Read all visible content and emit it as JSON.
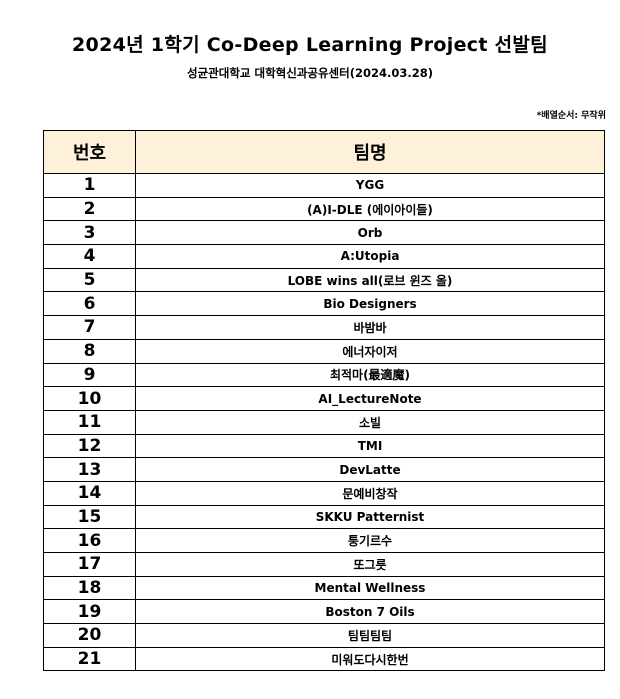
{
  "title": "2024년 1학기 Co-Deep Learning Project 선발팀",
  "subtitle": "성균관대학교 대학혁신과공유센터(2024.03.28)",
  "note": "*배열순서: 무작위",
  "table": {
    "headers": [
      "번호",
      "팀명"
    ],
    "rows": [
      {
        "num": "1",
        "name": "YGG"
      },
      {
        "num": "2",
        "name": "(A)I-DLE (에이아이들)"
      },
      {
        "num": "3",
        "name": "Orb"
      },
      {
        "num": "4",
        "name": "A:Utopia"
      },
      {
        "num": "5",
        "name": "LOBE wins all(로브 윈즈 올)"
      },
      {
        "num": "6",
        "name": "Bio Designers"
      },
      {
        "num": "7",
        "name": "바밤바"
      },
      {
        "num": "8",
        "name": "에너자이저"
      },
      {
        "num": "9",
        "name": "최적마(最適魔)"
      },
      {
        "num": "10",
        "name": "AI_LectureNote"
      },
      {
        "num": "11",
        "name": "소빌"
      },
      {
        "num": "12",
        "name": "TMI"
      },
      {
        "num": "13",
        "name": "DevLatte"
      },
      {
        "num": "14",
        "name": "문예비창작"
      },
      {
        "num": "15",
        "name": "SKKU Patternist"
      },
      {
        "num": "16",
        "name": "퉁기르수"
      },
      {
        "num": "17",
        "name": "또그릇"
      },
      {
        "num": "18",
        "name": "Mental Wellness"
      },
      {
        "num": "19",
        "name": "Boston 7 Oils"
      },
      {
        "num": "20",
        "name": "팀팀팀팀"
      },
      {
        "num": "21",
        "name": "미워도다시한번"
      }
    ]
  },
  "colors": {
    "header_bg": "#fdf1da",
    "border": "#000000"
  }
}
